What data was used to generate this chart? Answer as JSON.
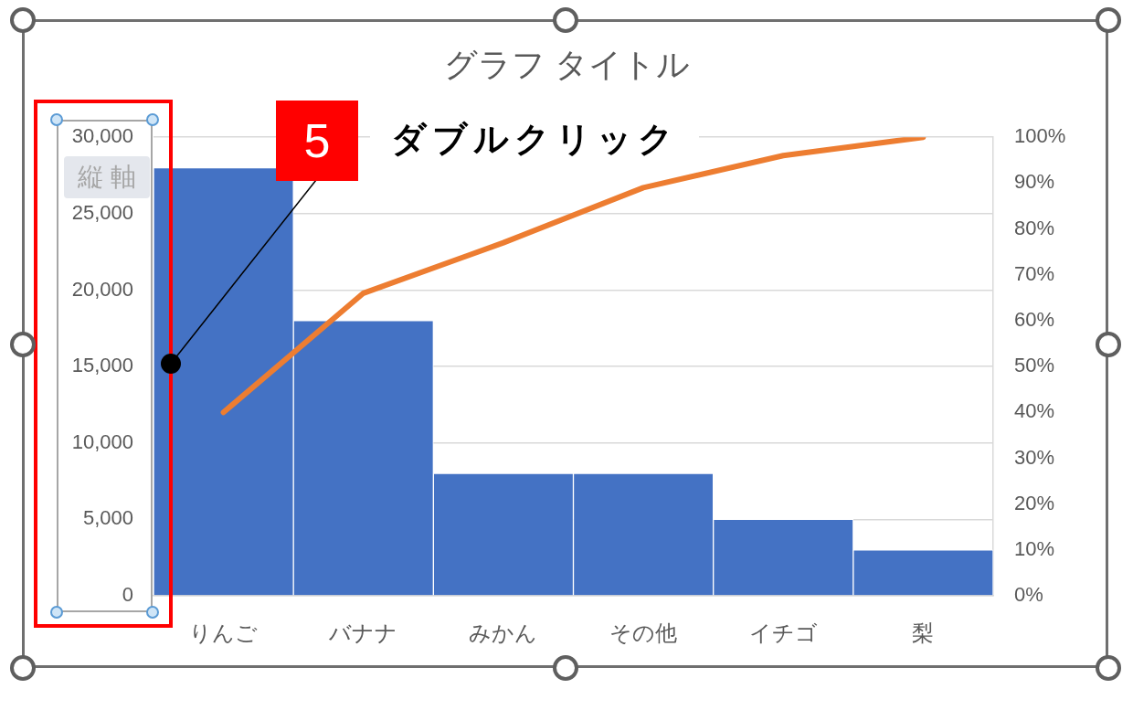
{
  "chart_data": {
    "type": "bar",
    "title": "グラフ タイトル",
    "categories": [
      "りんご",
      "バナナ",
      "みかん",
      "その他",
      "イチゴ",
      "梨"
    ],
    "series": [
      {
        "color": "#4472c4",
        "values": [
          28000,
          18000,
          8000,
          8000,
          5000,
          3000
        ]
      },
      {
        "type": "line",
        "axis": "y2",
        "color": "#ed7d31",
        "values": [
          40,
          66,
          77,
          89,
          96,
          100
        ]
      }
    ],
    "ylim": [
      0,
      30000
    ],
    "yticks": [
      0,
      {
        "value": 5000,
        "label": "5,000"
      },
      {
        "value": 10000,
        "label": "10,000"
      },
      {
        "value": 15000,
        "label": "15,000"
      },
      {
        "value": 20000,
        "label": "20,000"
      },
      {
        "value": 25000,
        "label": "25,000"
      },
      {
        "value": 30000,
        "label": "30,000"
      }
    ],
    "y2lim": [
      0,
      100
    ],
    "y2ticks": [
      {
        "value": 0,
        "label": "0%"
      },
      {
        "value": 10,
        "label": "10%"
      },
      {
        "value": 20,
        "label": "20%"
      },
      {
        "value": 30,
        "label": "30%"
      },
      {
        "value": 40,
        "label": "40%"
      },
      {
        "value": 50,
        "label": "50%"
      },
      {
        "value": 60,
        "label": "60%"
      },
      {
        "value": 70,
        "label": "70%"
      },
      {
        "value": 80,
        "label": "80%"
      },
      {
        "value": 90,
        "label": "90%"
      },
      {
        "value": 100,
        "label": "100%"
      }
    ],
    "grid": "y",
    "marker": "none",
    "annotations": [
      "5",
      "ダブルクリック",
      "縦 軸"
    ]
  }
}
